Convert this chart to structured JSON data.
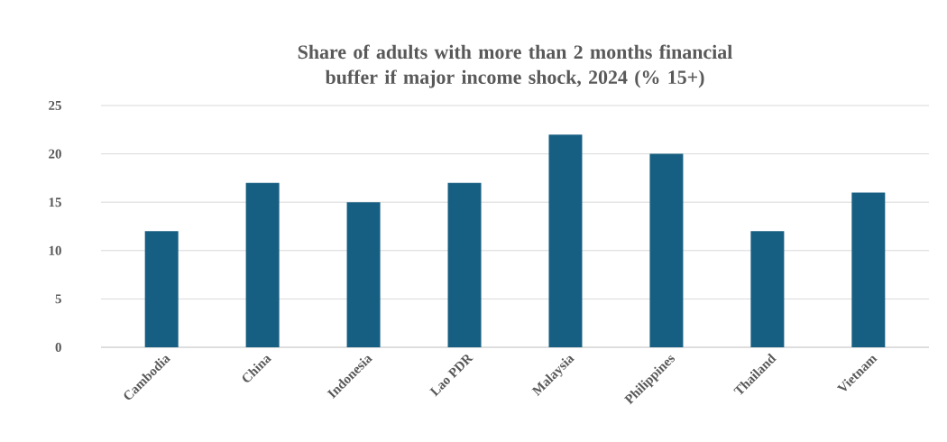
{
  "chart_data": {
    "type": "bar",
    "title": "Share of  adults with more than 2 months financial buffer if major income shock, 2024 (% 15+)",
    "categories": [
      "Cambodia",
      "China",
      "Indonesia",
      "Lao PDR",
      "Malaysia",
      "Philippines",
      "Thailand",
      "Vietnam"
    ],
    "values": [
      12,
      17,
      15,
      17,
      22,
      20,
      12,
      16
    ],
    "color": "#175f82",
    "ylim": [
      0,
      25
    ],
    "yticks": [
      0,
      5,
      10,
      15,
      20,
      25
    ],
    "grid": "y"
  }
}
